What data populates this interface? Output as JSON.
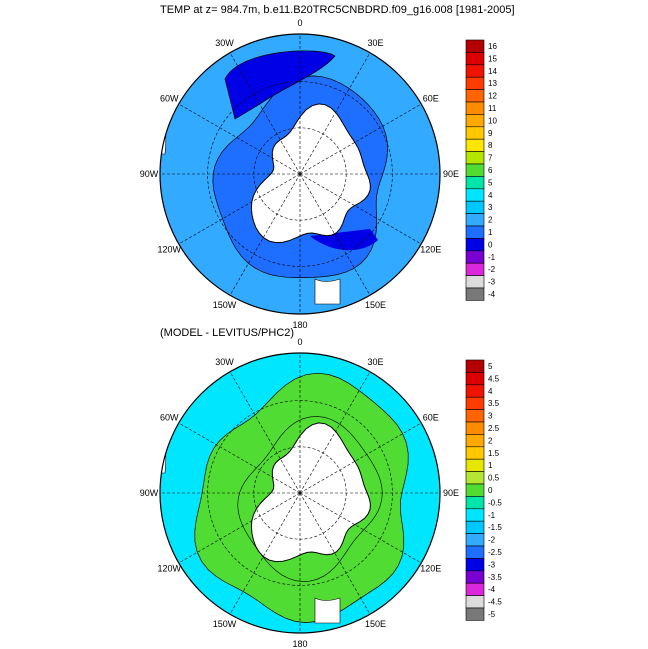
{
  "charts": {
    "top_title": "TEMP at z= 984.7m, b.e11.B20TRC5CNBDRD.f09_g16.008 [1981-2005]",
    "bottom_title": "(MODEL - LEVITUS/PHC2)",
    "lon_labels": [
      "0",
      "30E",
      "60E",
      "90E",
      "120E",
      "150E",
      "180",
      "150W",
      "120W",
      "90W",
      "60W",
      "30W"
    ]
  },
  "chart_data": [
    {
      "type": "heatmap",
      "title": "TEMP at z= 984.7m, b.e11.B20TRC5CNBDRD.f09_g16.008 [1981-2005]",
      "projection": "south-polar-stereographic",
      "colorbar_levels": [
        "16",
        "15",
        "14",
        "13",
        "12",
        "11",
        "10",
        "9",
        "8",
        "7",
        "6",
        "5",
        "4",
        "3",
        "2",
        "1",
        "0",
        "-1",
        "-2",
        "-3",
        "-4"
      ],
      "colorbar_colors": [
        "#b40000",
        "#dc0000",
        "#f01400",
        "#ff3c00",
        "#ff6400",
        "#ff8c00",
        "#ffaa00",
        "#ffc800",
        "#ffe600",
        "#b4e600",
        "#50dc32",
        "#00e6aa",
        "#00e6ff",
        "#00c8ff",
        "#32aaff",
        "#1e6eff",
        "#0000e6",
        "#7800d2",
        "#dc28dc",
        "#dcdcdc",
        "#787878"
      ],
      "field_colors": {
        "outer": "#32aaff",
        "mid": "#1e6eff",
        "weddell": "#0000e6",
        "ross": "#0000e6",
        "land": "#ffffff"
      }
    },
    {
      "type": "heatmap",
      "title": "(MODEL - LEVITUS/PHC2)",
      "projection": "south-polar-stereographic",
      "colorbar_levels": [
        "5",
        "4.5",
        "4",
        "3.5",
        "3",
        "2.5",
        "2",
        "1.5",
        "1",
        "0.5",
        "0",
        "-0.5",
        "-1",
        "-1.5",
        "-2",
        "-2.5",
        "-3",
        "-3.5",
        "-4",
        "-4.5",
        "-5"
      ],
      "colorbar_colors": [
        "#b40000",
        "#dc0000",
        "#f01400",
        "#ff3c00",
        "#ff6400",
        "#ff8c00",
        "#ffaa00",
        "#ffc800",
        "#e6e600",
        "#b4e632",
        "#50dc32",
        "#00e6aa",
        "#00e6ff",
        "#00c8ff",
        "#32aaff",
        "#1e6eff",
        "#0000e6",
        "#7800d2",
        "#dc28dc",
        "#dcdcdc",
        "#787878"
      ],
      "field_colors": {
        "outer": "#00e6ff",
        "ring": "#50dc32",
        "inner": "#50dc32",
        "land": "#ffffff"
      }
    }
  ]
}
